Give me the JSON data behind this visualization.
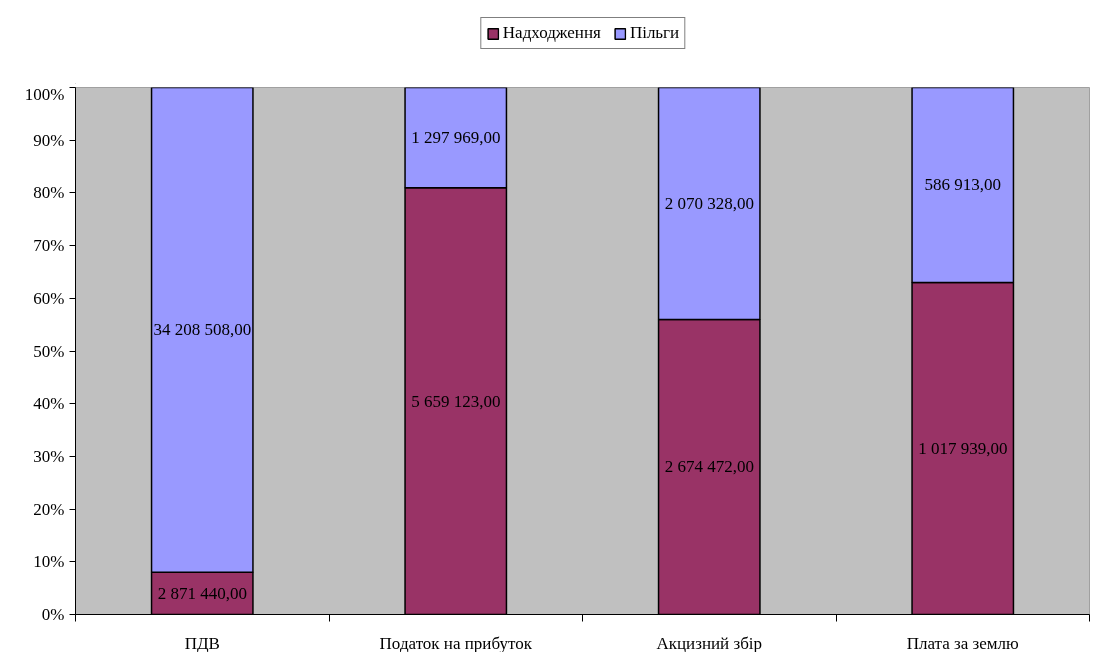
{
  "chart_data": {
    "type": "bar",
    "stacked": true,
    "categories": [
      "ПДВ",
      "Податок на прибуток",
      "Акцизний збір",
      "Плата за землю"
    ],
    "series": [
      {
        "name": "Надходження",
        "color": "#993366",
        "values": [
          8,
          81,
          56,
          63
        ]
      },
      {
        "name": "Пільги",
        "color": "#9999ff",
        "values": [
          92,
          19,
          44,
          37
        ]
      }
    ],
    "ylim": [
      0,
      100
    ],
    "yticks": [
      {
        "value": 0,
        "label": "0%"
      },
      {
        "value": 10,
        "label": "10%"
      },
      {
        "value": 20,
        "label": "20%"
      },
      {
        "value": 30,
        "label": "30%"
      },
      {
        "value": 40,
        "label": "40%"
      },
      {
        "value": 50,
        "label": "50%"
      },
      {
        "value": 60,
        "label": "60%"
      },
      {
        "value": 70,
        "label": "70%"
      },
      {
        "value": 80,
        "label": "80%"
      },
      {
        "value": 90,
        "label": "90%"
      },
      {
        "value": 100,
        "label": "100%"
      }
    ],
    "annotations": [
      "2 871 440,00",
      "5 659 123,00",
      "2 674 472,00",
      "1 017 939,00",
      "34 208 508,00",
      "1 297 969,00",
      "2 070 328,00",
      "586 913,00"
    ],
    "legend": "top"
  }
}
